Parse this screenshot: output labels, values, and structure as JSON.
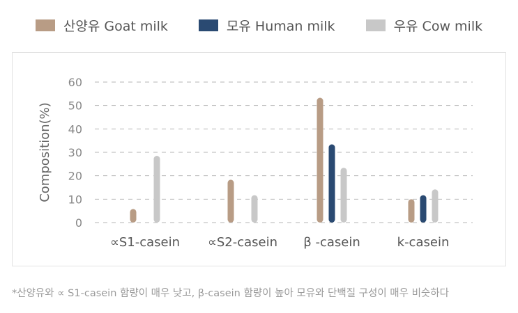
{
  "legend": [
    {
      "label": "산양유 Goat milk",
      "color": "#b89c85"
    },
    {
      "label": "모유 Human milk",
      "color": "#2a4a72"
    },
    {
      "label": "우유 Cow milk",
      "color": "#c8c8c8"
    }
  ],
  "footnote": "*산양유와 ∝ S1-casein 함량이 매우 낮고, β-casein 함량이 높아 모유와 단백질 구성이 매우 비슷하다",
  "chart_data": {
    "type": "bar",
    "ylabel": "Composition(%)",
    "xlabel": "",
    "ylim": [
      0,
      60
    ],
    "yticks": [
      0,
      10,
      20,
      30,
      40,
      50,
      60
    ],
    "grid": true,
    "legend_position": "top",
    "categories": [
      "∝S1-casein",
      "∝S2-casein",
      "β -casein",
      "k-casein"
    ],
    "series": [
      {
        "name": "산양유 Goat milk",
        "color": "#b89c85",
        "values": [
          5.8,
          18.3,
          53.3,
          10
        ]
      },
      {
        "name": "모유 Human milk",
        "color": "#2a4a72",
        "values": [
          0,
          0,
          33.4,
          11.7
        ]
      },
      {
        "name": "우유 Cow milk",
        "color": "#c8c8c8",
        "values": [
          28.5,
          11.7,
          23.4,
          14.2
        ]
      }
    ]
  }
}
